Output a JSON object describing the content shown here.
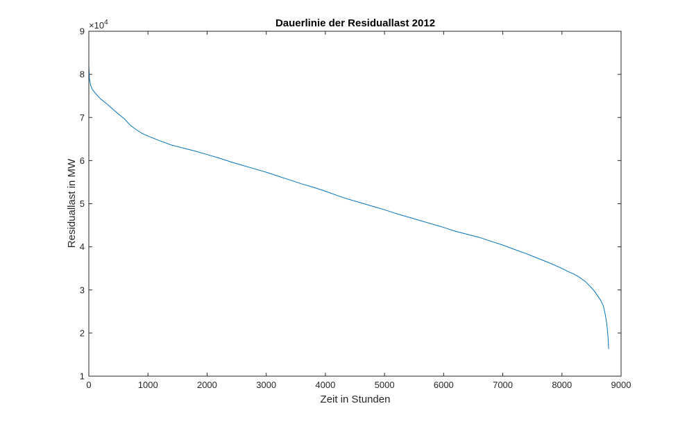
{
  "chart_data": {
    "type": "line",
    "title": "Dauerlinie der Residuallast 2012",
    "xlabel": "Zeit in Stunden",
    "ylabel": "Residuallast in MW",
    "y_exponent": {
      "base": "×10",
      "power": "4"
    },
    "xlim": [
      0,
      9000
    ],
    "ylim": [
      10000,
      90000
    ],
    "x_ticks": [
      0,
      1000,
      2000,
      3000,
      4000,
      5000,
      6000,
      7000,
      8000,
      9000
    ],
    "x_tick_labels": [
      "0",
      "1000",
      "2000",
      "3000",
      "4000",
      "5000",
      "6000",
      "7000",
      "8000",
      "9000"
    ],
    "y_ticks": [
      10000,
      20000,
      30000,
      40000,
      50000,
      60000,
      70000,
      80000,
      90000
    ],
    "y_tick_labels": [
      "1",
      "2",
      "3",
      "4",
      "5",
      "6",
      "7",
      "8",
      "9"
    ],
    "grid": false,
    "line_color": "#0072bd",
    "series": [
      {
        "x": [
          0,
          10,
          30,
          60,
          100,
          150,
          200,
          300,
          400,
          500,
          600,
          700,
          800,
          900,
          1000,
          1200,
          1400,
          1600,
          1800,
          2000,
          2200,
          2400,
          2600,
          2800,
          3000,
          3200,
          3400,
          3600,
          3800,
          4000,
          4200,
          4400,
          4600,
          4800,
          5000,
          5200,
          5400,
          5600,
          5800,
          6000,
          6200,
          6400,
          6600,
          6800,
          7000,
          7200,
          7400,
          7600,
          7800,
          8000,
          8100,
          8200,
          8300,
          8400,
          8450,
          8500,
          8550,
          8600,
          8650,
          8700,
          8730,
          8760,
          8780,
          8790
        ],
        "y": [
          82000,
          79000,
          77500,
          76500,
          75800,
          75000,
          74300,
          73200,
          72000,
          70800,
          69700,
          68200,
          67200,
          66300,
          65700,
          64600,
          63600,
          62900,
          62200,
          61400,
          60600,
          59700,
          58900,
          58100,
          57300,
          56400,
          55500,
          54600,
          53800,
          52900,
          51900,
          51000,
          50200,
          49400,
          48600,
          47700,
          46900,
          46100,
          45300,
          44500,
          43600,
          42900,
          42200,
          41300,
          40400,
          39400,
          38400,
          37300,
          36200,
          35000,
          34300,
          33700,
          32900,
          31900,
          31200,
          30500,
          29700,
          28700,
          27700,
          26300,
          24500,
          22000,
          19000,
          16300
        ]
      }
    ]
  }
}
